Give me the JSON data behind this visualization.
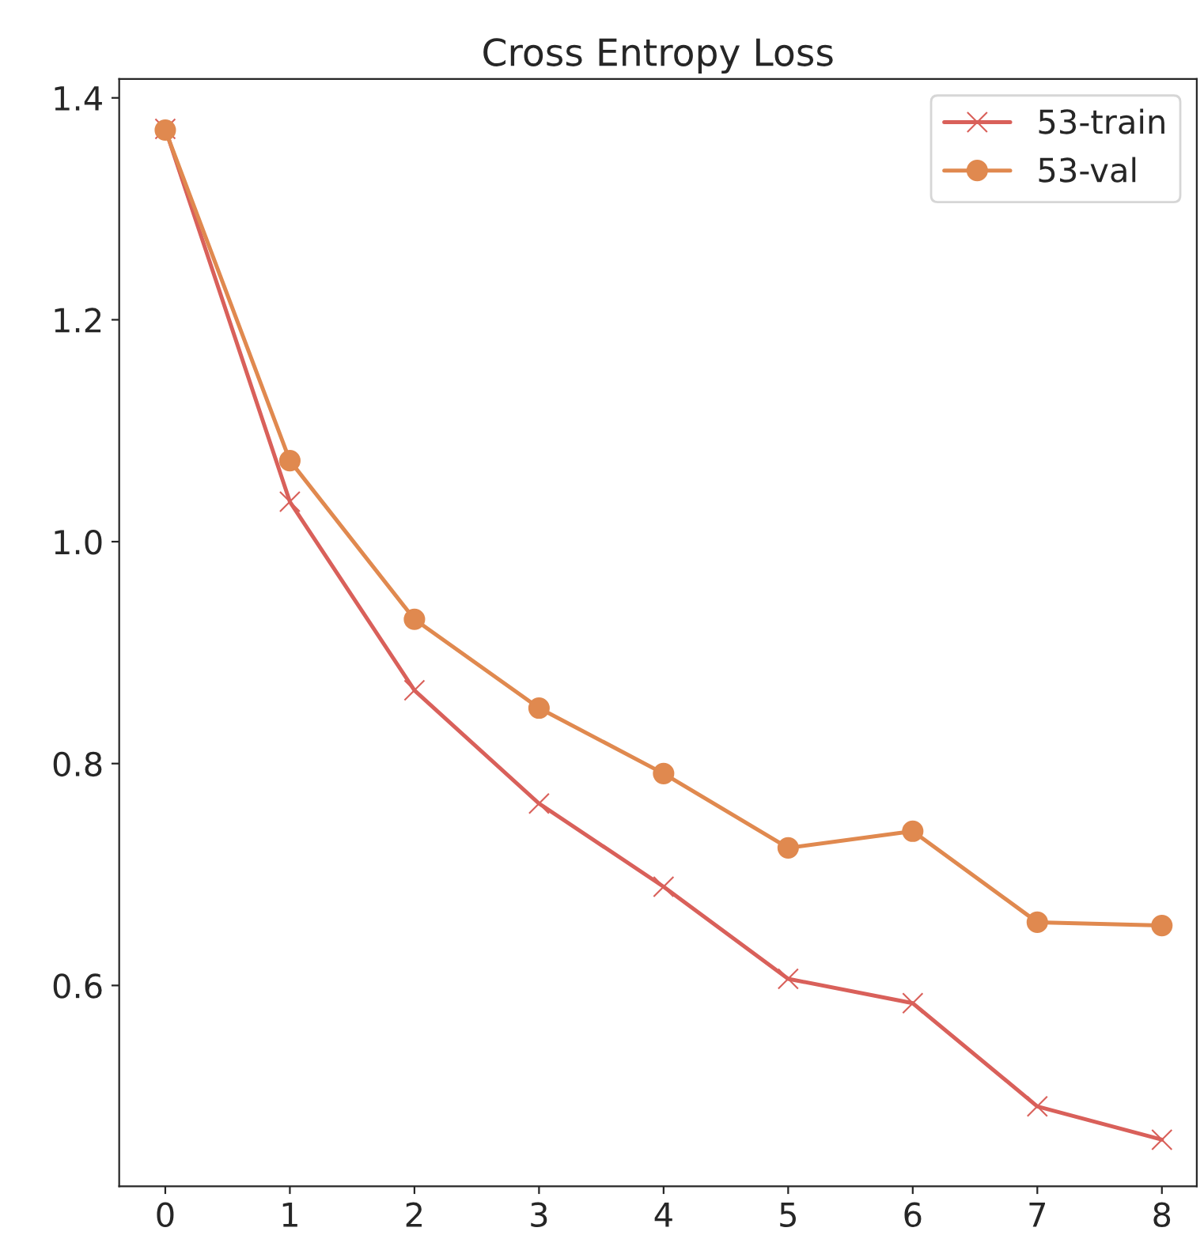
{
  "chart_data": {
    "type": "line",
    "title": "Cross Entropy Loss",
    "x": [
      0,
      1,
      2,
      3,
      4,
      5,
      6,
      7,
      8
    ],
    "series": [
      {
        "name": "53-train",
        "color": "#d9605a",
        "marker": "cross",
        "values": [
          1.372,
          1.036,
          0.866,
          0.764,
          0.689,
          0.606,
          0.584,
          0.491,
          0.461
        ]
      },
      {
        "name": "53-val",
        "color": "#e0894f",
        "marker": "circle",
        "values": [
          1.371,
          1.073,
          0.93,
          0.85,
          0.791,
          0.724,
          0.739,
          0.657,
          0.654
        ]
      }
    ],
    "xlim": [
      -0.37,
      8.28
    ],
    "xticks": [
      0,
      1,
      2,
      3,
      4,
      5,
      6,
      7,
      8
    ],
    "ylim": [
      0.419,
      1.417
    ],
    "yticks": [
      {
        "value": 0.6,
        "label": "0.6"
      },
      {
        "value": 0.8,
        "label": "0.8"
      },
      {
        "value": 1.0,
        "label": "1.0"
      },
      {
        "value": 1.2,
        "label": "1.2"
      },
      {
        "value": 1.4,
        "label": "1.4"
      }
    ],
    "grid": false,
    "legend": "top right",
    "line_style": "solid"
  }
}
